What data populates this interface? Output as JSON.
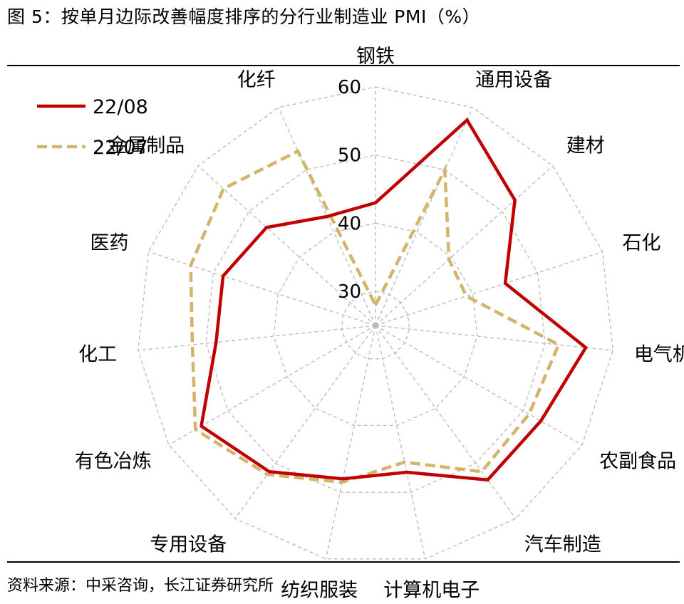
{
  "figure": {
    "title": "图  5：按单月边际改善幅度排序的分行业制造业 PMI（%）",
    "source": "资料来源：中采咨询，长江证券研究所"
  },
  "chart_data": {
    "type": "radar",
    "categories": [
      "钢铁",
      "通用设备",
      "建材",
      "石化",
      "电气机械",
      "农副食品",
      "汽车制造",
      "计算机电子",
      "纺织服装",
      "专用设备",
      "有色冶炼",
      "化工",
      "医药",
      "金属制品",
      "化纤"
    ],
    "rlim": [
      25,
      60
    ],
    "ticks": [
      30,
      40,
      50,
      60
    ],
    "grid": true,
    "legend_position": "top-left",
    "series": [
      {
        "name": "22/08",
        "color": "#C00000",
        "dash": "solid",
        "values": [
          43.0,
          58.0,
          52.5,
          45.0,
          56.0,
          53.0,
          53.0,
          47.0,
          48.0,
          51.5,
          54.5,
          48.5,
          48.5,
          46.5,
          42.5
        ]
      },
      {
        "name": "22/07",
        "color": "#D4B46A",
        "dash": "dashed",
        "values": [
          28.0,
          50.0,
          39.5,
          39.0,
          52.0,
          51.0,
          51.5,
          45.5,
          48.5,
          52.0,
          55.5,
          52.0,
          53.5,
          55.0,
          53.0
        ]
      }
    ]
  }
}
